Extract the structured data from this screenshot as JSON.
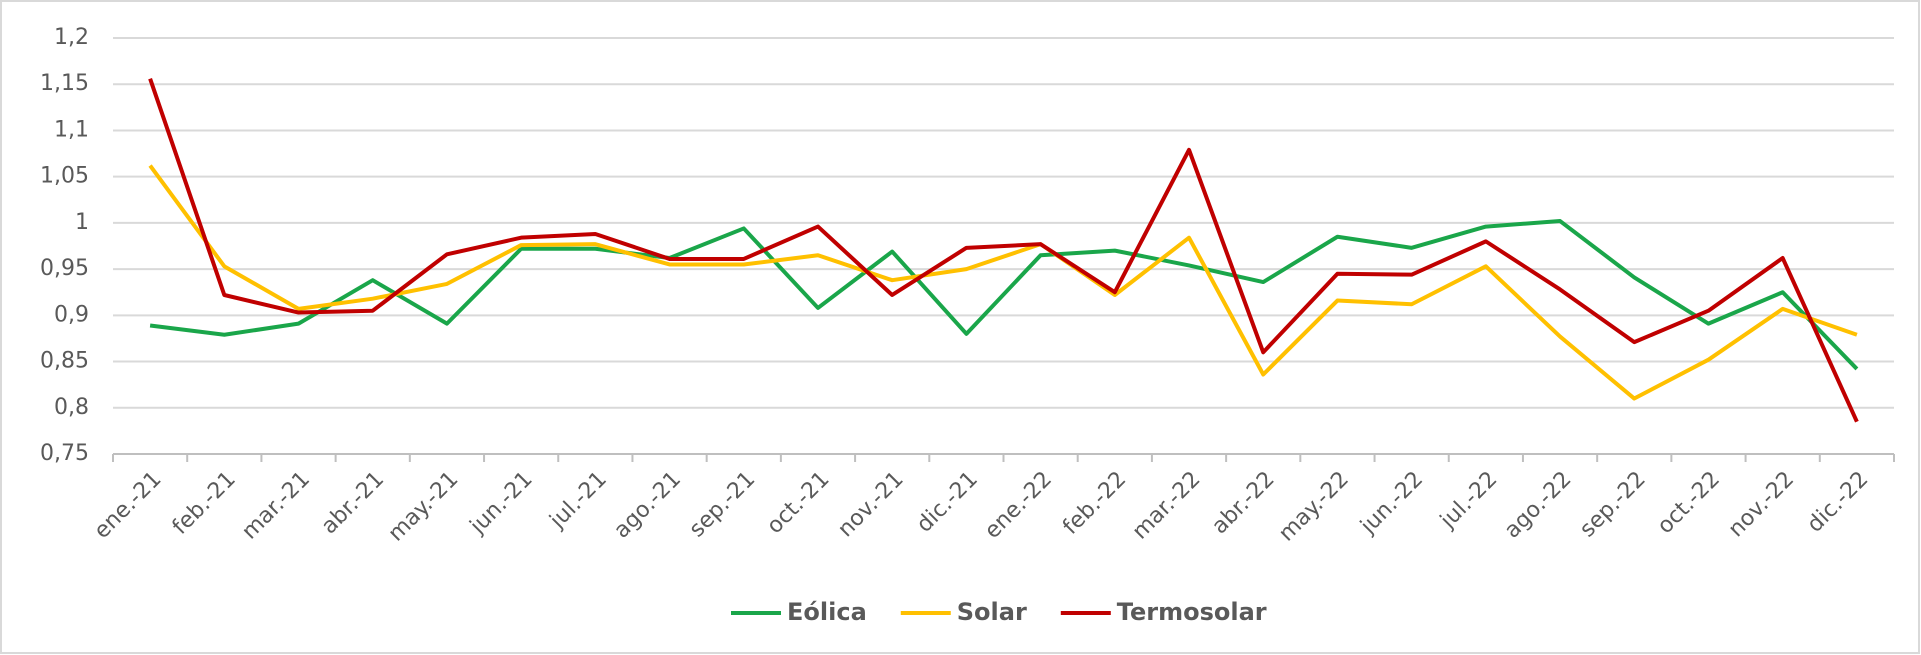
{
  "chart_data": {
    "type": "line",
    "categories": [
      "ene.-21",
      "feb.-21",
      "mar.-21",
      "abr.-21",
      "may.-21",
      "jun.-21",
      "jul.-21",
      "ago.-21",
      "sep.-21",
      "oct.-21",
      "nov.-21",
      "dic.-21",
      "ene.-22",
      "feb.-22",
      "mar.-22",
      "abr.-22",
      "may.-22",
      "jun.-22",
      "jul.-22",
      "ago.-22",
      "sep.-22",
      "oct.-22",
      "nov.-22",
      "dic.-22"
    ],
    "series": [
      {
        "name": "Eólica",
        "color": "#1aa64a",
        "values": [
          0.889,
          0.879,
          0.891,
          0.938,
          0.891,
          0.972,
          0.972,
          0.962,
          0.994,
          0.908,
          0.969,
          0.88,
          0.965,
          0.97,
          0.954,
          0.936,
          0.985,
          0.973,
          0.996,
          1.002,
          0.941,
          0.891,
          0.925,
          0.842
        ]
      },
      {
        "name": "Solar",
        "color": "#ffc000",
        "values": [
          1.062,
          0.953,
          0.907,
          0.918,
          0.934,
          0.976,
          0.977,
          0.955,
          0.955,
          0.965,
          0.938,
          0.95,
          0.977,
          0.922,
          0.984,
          0.836,
          0.916,
          0.912,
          0.953,
          0.877,
          0.81,
          0.852,
          0.907,
          0.879
        ]
      },
      {
        "name": "Termosolar",
        "color": "#c00000",
        "values": [
          1.156,
          0.922,
          0.903,
          0.905,
          0.966,
          0.984,
          0.988,
          0.961,
          0.961,
          0.996,
          0.922,
          0.973,
          0.977,
          0.925,
          1.079,
          0.86,
          0.945,
          0.944,
          0.98,
          0.928,
          0.871,
          0.905,
          0.962,
          0.785
        ]
      }
    ],
    "ylim": [
      0.75,
      1.2
    ],
    "yticks": [
      {
        "value": 0.75,
        "label": "0,75"
      },
      {
        "value": 0.8,
        "label": "0,8"
      },
      {
        "value": 0.85,
        "label": "0,85"
      },
      {
        "value": 0.9,
        "label": "0,9"
      },
      {
        "value": 0.95,
        "label": "0,95"
      },
      1,
      {
        "value": 1.05,
        "label": "1,05"
      },
      {
        "value": 1.1,
        "label": "1,1"
      },
      {
        "value": 1.15,
        "label": "1,15"
      },
      {
        "value": 1.2,
        "label": "1,2"
      }
    ],
    "grid": true,
    "legend": "bottom"
  }
}
